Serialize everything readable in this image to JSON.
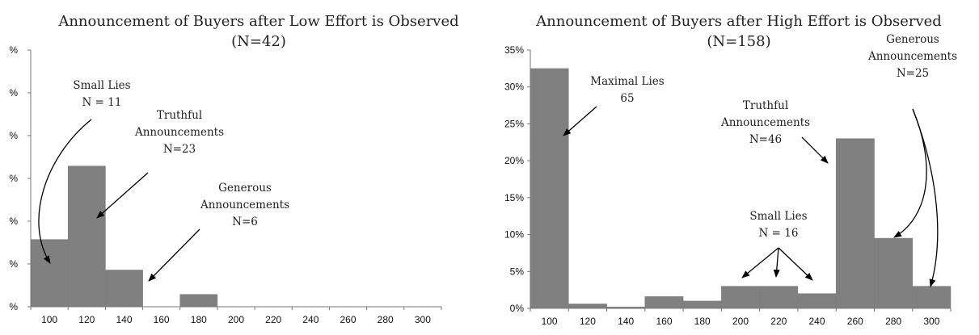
{
  "chart_data": [
    {
      "type": "bar",
      "title": "Announcement of Buyers after Low Effort is Observed",
      "subtitle": "(N=42)",
      "categories": [
        "100",
        "120",
        "140",
        "160",
        "180",
        "200",
        "220",
        "240",
        "260",
        "280",
        "300"
      ],
      "values": [
        0.262,
        0.548,
        0.143,
        0,
        0.048,
        0,
        0,
        0,
        0,
        0,
        0
      ],
      "ylim": [
        0,
        1.0
      ],
      "y_tick_labels": [
        "%",
        "%",
        "%",
        "%",
        "%",
        "%",
        "%"
      ],
      "grid": false,
      "annotations": [
        {
          "lines": [
            "Small Lies",
            "N = 11"
          ]
        },
        {
          "lines": [
            "Truthful",
            "Announcements",
            "N=23"
          ]
        },
        {
          "lines": [
            "Generous",
            "Announcements",
            "N=6"
          ]
        }
      ]
    },
    {
      "type": "bar",
      "title": "Announcement of Buyers after High Effort is Observed",
      "subtitle": "(N=158)",
      "categories": [
        "100",
        "120",
        "140",
        "160",
        "180",
        "200",
        "220",
        "240",
        "260",
        "280",
        "300"
      ],
      "values": [
        0.325,
        0.006,
        0.002,
        0.016,
        0.01,
        0.03,
        0.03,
        0.02,
        0.23,
        0.095,
        0.03
      ],
      "ylim": [
        0,
        0.35
      ],
      "y_tick_labels": [
        "0%",
        "5%",
        "10%",
        "15%",
        "20%",
        "25%",
        "30%",
        "35%"
      ],
      "grid": false,
      "annotations": [
        {
          "lines": [
            "Maximal Lies",
            "65"
          ]
        },
        {
          "lines": [
            "Truthful",
            "Announcements",
            "N=46"
          ]
        },
        {
          "lines": [
            "Small Lies",
            "N = 16"
          ]
        },
        {
          "lines": [
            "Generous",
            "Announcements",
            "N=25"
          ]
        }
      ]
    }
  ]
}
